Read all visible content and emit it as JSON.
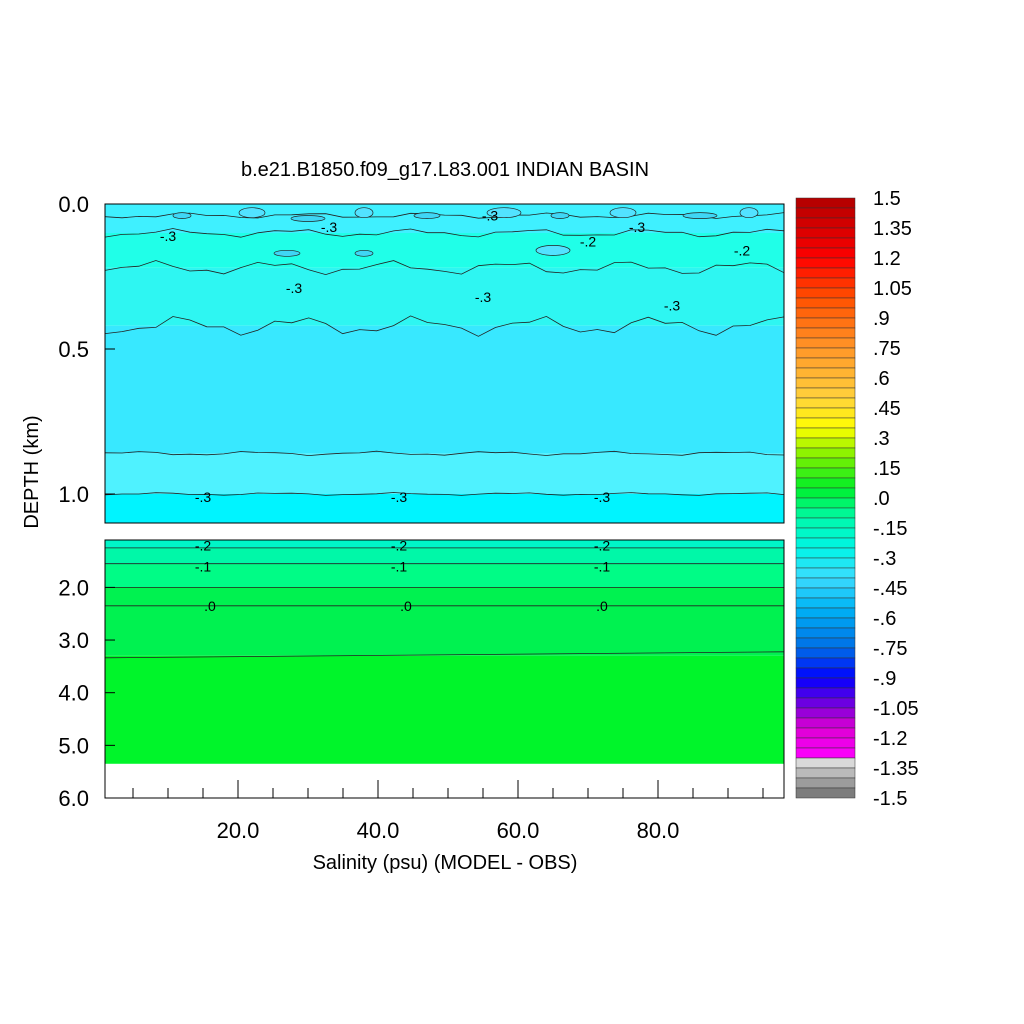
{
  "chart_data": {
    "type": "heatmap",
    "title": "b.e21.B1850.f09_g17.L83.001 INDIAN BASIN",
    "xlabel": "Salinity (psu) (MODEL - OBS)",
    "ylabel": "DEPTH (km)",
    "xlim": [
      1,
      98
    ],
    "x_ticks": [
      20,
      40,
      60,
      80
    ],
    "x_tick_labels": [
      "20.0",
      "40.0",
      "60.0",
      "80.0"
    ],
    "y_upper_range_km": [
      0.0,
      1.1
    ],
    "y_upper_ticks": [
      0.0,
      0.5,
      1.0
    ],
    "y_upper_tick_labels": [
      "0.0",
      "0.5",
      "1.0"
    ],
    "y_lower_range_km": [
      1.1,
      6.0
    ],
    "y_lower_ticks": [
      2.0,
      3.0,
      4.0,
      5.0,
      6.0
    ],
    "y_lower_tick_labels": [
      "2.0",
      "3.0",
      "4.0",
      "5.0",
      "6.0"
    ],
    "ocean_floor_km": 5.35,
    "colorbar": {
      "min": -1.5,
      "max": 1.5,
      "step": 0.05,
      "tick_labels": [
        "1.5",
        "1.35",
        "1.2",
        "1.05",
        ".9",
        ".75",
        ".6",
        ".45",
        ".3",
        ".15",
        ".0",
        "-.15",
        "-.3",
        "-.45",
        "-.6",
        "-.75",
        "-.9",
        "-1.05",
        "-1.2",
        "-1.35",
        "-1.5"
      ]
    },
    "contour_levels": [
      -0.3,
      -0.2,
      -0.1,
      0.0
    ],
    "upper_bands": [
      {
        "top_km": 0.0,
        "bottom_km": 0.1,
        "value": -0.35,
        "color": "#3ff0ff"
      },
      {
        "top_km": 0.1,
        "bottom_km": 0.22,
        "value": -0.25,
        "color": "#20ffe8"
      },
      {
        "top_km": 0.22,
        "bottom_km": 0.42,
        "value": -0.3,
        "color": "#2ef6f2"
      },
      {
        "top_km": 0.42,
        "bottom_km": 0.86,
        "value": -0.4,
        "color": "#38e8ff"
      },
      {
        "top_km": 0.86,
        "bottom_km": 1.0,
        "value": -0.35,
        "color": "#4ff2ff"
      },
      {
        "top_km": 1.0,
        "bottom_km": 1.1,
        "value": -0.3,
        "color": "#00f4ff"
      }
    ],
    "lower_bands": [
      {
        "top_km": 1.1,
        "bottom_km": 1.25,
        "value": -0.2,
        "color": "#00f5c8"
      },
      {
        "top_km": 1.25,
        "bottom_km": 1.55,
        "value": -0.15,
        "color": "#00f8a8"
      },
      {
        "top_km": 1.55,
        "bottom_km": 2.0,
        "value": -0.05,
        "color": "#00fc86"
      },
      {
        "top_km": 2.0,
        "bottom_km": 3.3,
        "value": 0.05,
        "color": "#00f250"
      },
      {
        "top_km": 3.3,
        "bottom_km": 5.35,
        "value": 0.1,
        "color": "#00f52a"
      }
    ],
    "contour_labels": [
      {
        "text": "-.3",
        "x": 10,
        "depth_km": 0.11,
        "panel": "upper"
      },
      {
        "text": "-.3",
        "x": 33,
        "depth_km": 0.08,
        "panel": "upper"
      },
      {
        "text": "-.3",
        "x": 56,
        "depth_km": 0.04,
        "panel": "upper"
      },
      {
        "text": "-.3",
        "x": 77,
        "depth_km": 0.08,
        "panel": "upper"
      },
      {
        "text": "-.2",
        "x": 70,
        "depth_km": 0.13,
        "panel": "upper"
      },
      {
        "text": "-.2",
        "x": 92,
        "depth_km": 0.16,
        "panel": "upper"
      },
      {
        "text": "-.3",
        "x": 28,
        "depth_km": 0.29,
        "panel": "upper"
      },
      {
        "text": "-.3",
        "x": 55,
        "depth_km": 0.32,
        "panel": "upper"
      },
      {
        "text": "-.3",
        "x": 82,
        "depth_km": 0.35,
        "panel": "upper"
      },
      {
        "text": "-.3",
        "x": 15,
        "depth_km": 1.01,
        "panel": "upper"
      },
      {
        "text": "-.3",
        "x": 43,
        "depth_km": 1.01,
        "panel": "upper"
      },
      {
        "text": "-.3",
        "x": 72,
        "depth_km": 1.01,
        "panel": "upper"
      },
      {
        "text": "-.2",
        "x": 15,
        "depth_km": 1.2,
        "panel": "lower"
      },
      {
        "text": "-.2",
        "x": 43,
        "depth_km": 1.2,
        "panel": "lower"
      },
      {
        "text": "-.2",
        "x": 72,
        "depth_km": 1.2,
        "panel": "lower"
      },
      {
        "text": "-.1",
        "x": 15,
        "depth_km": 1.6,
        "panel": "lower"
      },
      {
        "text": "-.1",
        "x": 43,
        "depth_km": 1.6,
        "panel": "lower"
      },
      {
        "text": "-.1",
        "x": 72,
        "depth_km": 1.6,
        "panel": "lower"
      },
      {
        "text": ".0",
        "x": 16,
        "depth_km": 2.35,
        "panel": "lower"
      },
      {
        "text": ".0",
        "x": 44,
        "depth_km": 2.35,
        "panel": "lower"
      },
      {
        "text": ".0",
        "x": 72,
        "depth_km": 2.35,
        "panel": "lower"
      }
    ]
  }
}
